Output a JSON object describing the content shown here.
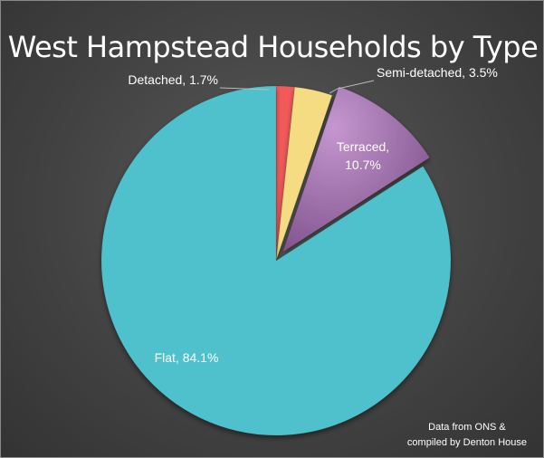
{
  "chart_data": {
    "type": "pie",
    "title": "West Hampstead Households by Type",
    "slices": [
      {
        "name": "Detached",
        "value": 1.7,
        "label": "Detached, 1.7%",
        "color": "#f25a5a"
      },
      {
        "name": "Semi-detached",
        "value": 3.5,
        "label": "Semi-detached, 3.5%",
        "color": "#f5dc82"
      },
      {
        "name": "Terraced",
        "value": 10.7,
        "label_lines": [
          "Terraced,",
          "10.7%"
        ],
        "color": "#a879b3",
        "exploded": true
      },
      {
        "name": "Flat",
        "value": 84.1,
        "label": "Flat, 84.1%",
        "color": "#4fc1cc"
      }
    ],
    "start_angle_deg": 0,
    "direction": "clockwise"
  },
  "note": {
    "line1": "Data from ONS &",
    "line2": "compiled by Denton House"
  },
  "label_color": "#ffffff",
  "leader_line_color": "#bbbbbb"
}
